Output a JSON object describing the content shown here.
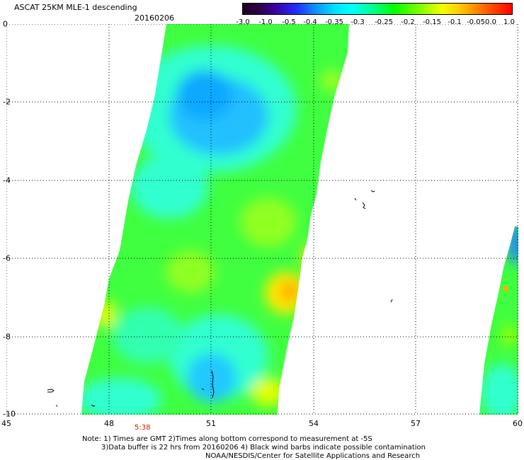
{
  "header": {
    "title": "ASCAT 25KM MLE-1 descending",
    "date": "20160206"
  },
  "colorbar": {
    "labels": [
      "-3.0",
      "-1.0",
      "-0.5",
      "-0.4",
      "-0.35",
      "-0.3",
      "-0.25",
      "-0.2",
      "-0.15",
      "-0.1",
      "-0.05",
      "0.0",
      "1.0"
    ]
  },
  "axes": {
    "x_ticks": [
      "45",
      "48",
      "51",
      "54",
      "57",
      "60"
    ],
    "y_ticks": [
      "0",
      "-2",
      "-4",
      "-6",
      "-8",
      "-10"
    ]
  },
  "map": {
    "lon_range": [
      45,
      60
    ],
    "lat_range": [
      -10,
      0
    ],
    "grid": true,
    "colors": {
      "ocean_background": "#ffffff",
      "swath_dominant": "#40ff40",
      "swath_cyan": "#30ffd0",
      "swath_blue": "#20c0ff",
      "swath_yellow": "#ffe800",
      "swath_orange": "#ff9000"
    }
  },
  "time_label": "5:38",
  "notes": {
    "line1": "Note: 1) Times are GMT 2)Times along bottom correspond to measurement at -5S",
    "line2": "3)Data buffer is 22 hrs from 20160206 4) Black wind barbs indicate possible contamination",
    "line3": "NOAA/NESDIS/Center for Satellite Applications and Research"
  }
}
